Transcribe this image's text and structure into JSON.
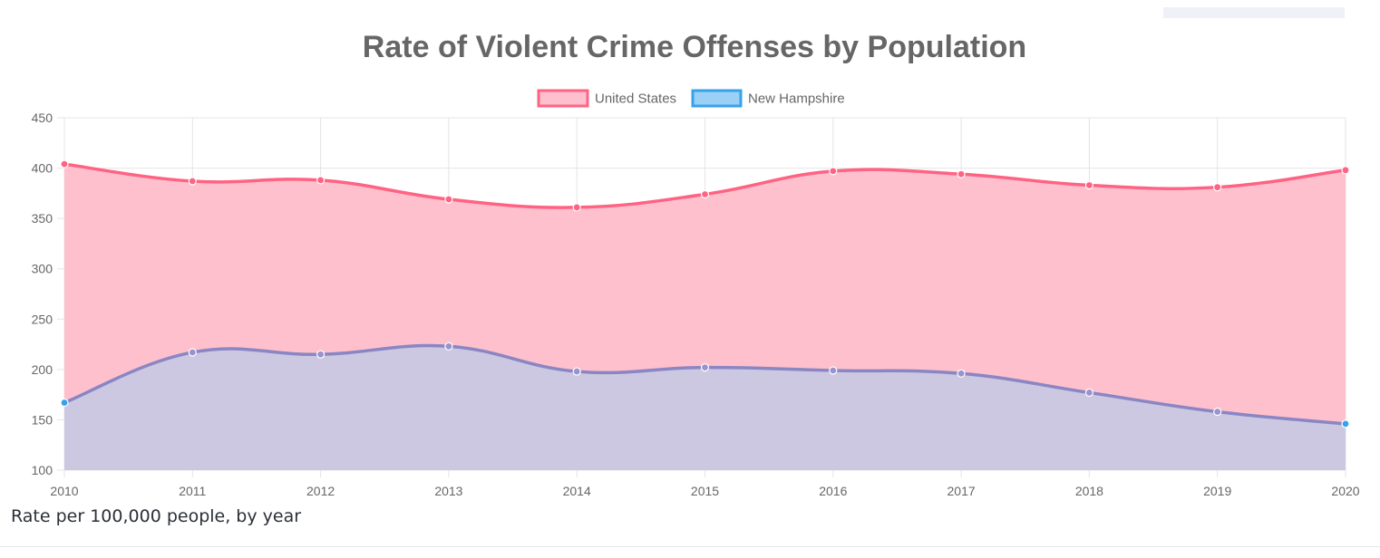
{
  "chart_data": {
    "type": "area",
    "title": "Rate of Violent Crime Offenses by Population",
    "xlabel": "",
    "ylabel": "",
    "ylim": [
      100,
      450
    ],
    "yticks": [
      100,
      150,
      200,
      250,
      300,
      350,
      400,
      450
    ],
    "grid": true,
    "legend_position": "top-center",
    "categories": [
      "2010",
      "2011",
      "2012",
      "2013",
      "2014",
      "2015",
      "2016",
      "2017",
      "2018",
      "2019",
      "2020"
    ],
    "series": [
      {
        "name": "United States",
        "values": [
          404,
          387,
          388,
          369,
          361,
          374,
          397,
          394,
          383,
          381,
          398
        ],
        "line_color": "#ff6384",
        "fill_color": "#ffc0cd"
      },
      {
        "name": "New Hampshire",
        "values": [
          167,
          217,
          215,
          223,
          198,
          202,
          199,
          196,
          177,
          158,
          146
        ],
        "line_color": "#36a2eb",
        "fill_color": "#9ad0f5"
      }
    ]
  },
  "caption": "Rate per 100,000 people, by year"
}
